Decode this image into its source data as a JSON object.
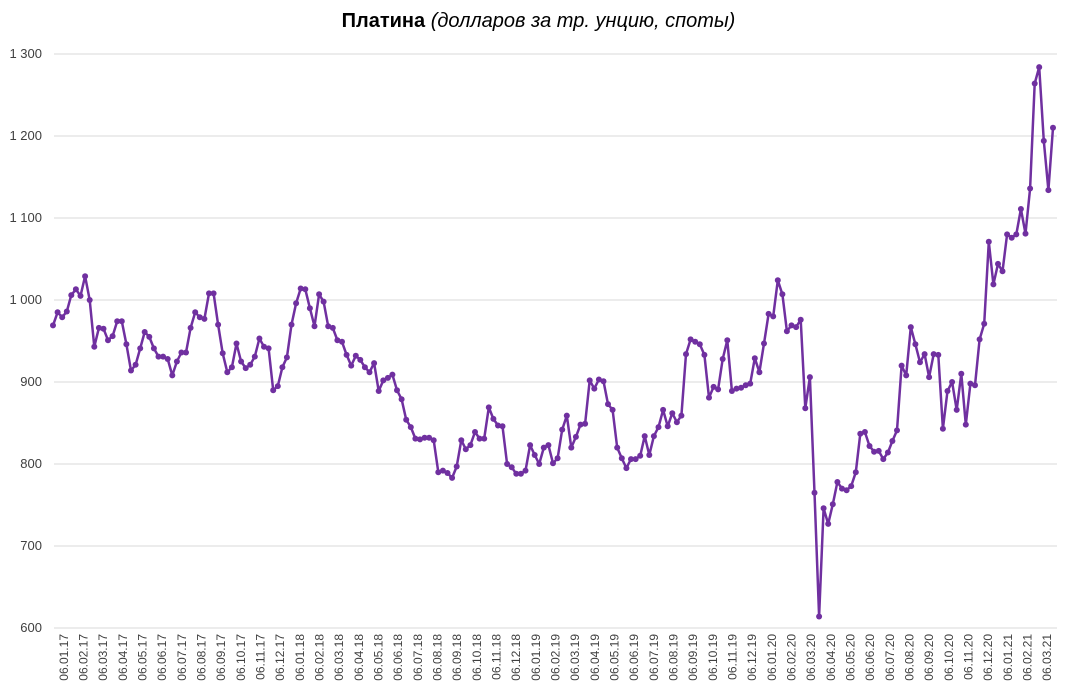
{
  "chart_data": {
    "type": "line",
    "title": "Платина",
    "subtitle": "(долларов за тр. унцию, споты)",
    "xlabel": "",
    "ylabel": "",
    "ylim": [
      600,
      1300
    ],
    "yticks": [
      600,
      700,
      800,
      900,
      1000,
      1100,
      1200,
      1300
    ],
    "ytick_labels": [
      "600",
      "700",
      "800",
      "900",
      "1 000",
      "1 100",
      "1 200",
      "1 300"
    ],
    "xtick_labels": [
      "06.01.17",
      "06.02.17",
      "06.03.17",
      "06.04.17",
      "06.05.17",
      "06.06.17",
      "06.07.17",
      "06.08.17",
      "06.09.17",
      "06.10.17",
      "06.11.17",
      "06.12.17",
      "06.01.18",
      "06.02.18",
      "06.03.18",
      "06.04.18",
      "06.05.18",
      "06.06.18",
      "06.07.18",
      "06.08.18",
      "06.09.18",
      "06.10.18",
      "06.11.18",
      "06.12.18",
      "06.01.19",
      "06.02.19",
      "06.03.19",
      "06.04.19",
      "06.05.19",
      "06.06.19",
      "06.07.19",
      "06.08.19",
      "06.09.19",
      "06.10.19",
      "06.11.19",
      "06.12.19",
      "06.01.20",
      "06.02.20",
      "06.03.20",
      "06.04.20",
      "06.05.20",
      "06.06.20",
      "06.07.20",
      "06.08.20",
      "06.09.20",
      "06.10.20",
      "06.11.20",
      "06.12.20",
      "06.01.21",
      "06.02.21",
      "06.03.21"
    ],
    "grid": true,
    "legend": "none",
    "series": [
      {
        "color": "#7030A0",
        "values": [
          969,
          985,
          979,
          986,
          1006,
          1013,
          1005,
          1029,
          1000,
          943,
          966,
          965,
          951,
          956,
          974,
          974,
          946,
          914,
          921,
          941,
          961,
          955,
          941,
          931,
          931,
          928,
          908,
          925,
          936,
          936,
          966,
          985,
          979,
          977,
          1008,
          1008,
          970,
          935,
          912,
          918,
          947,
          925,
          917,
          921,
          931,
          953,
          943,
          941,
          890,
          895,
          918,
          930,
          970,
          996,
          1014,
          1013,
          990,
          968,
          1007,
          998,
          968,
          966,
          951,
          949,
          933,
          920,
          932,
          927,
          918,
          912,
          923,
          889,
          902,
          905,
          909,
          890,
          879,
          854,
          845,
          831,
          830,
          832,
          832,
          829,
          790,
          792,
          789,
          783,
          797,
          829,
          818,
          823,
          839,
          831,
          831,
          869,
          855,
          847,
          846,
          800,
          796,
          788,
          788,
          792,
          823,
          811,
          800,
          820,
          823,
          801,
          807,
          842,
          859,
          820,
          833,
          848,
          849,
          902,
          892,
          903,
          901,
          873,
          866,
          820,
          807,
          795,
          806,
          806,
          810,
          834,
          811,
          834,
          845,
          866,
          846,
          862,
          851,
          859,
          934,
          952,
          949,
          946,
          933,
          881,
          894,
          891,
          928,
          951,
          889,
          892,
          893,
          896,
          898,
          929,
          912,
          947,
          983,
          980,
          1024,
          1007,
          962,
          969,
          967,
          976,
          868,
          906,
          765,
          614,
          746,
          727,
          751,
          778,
          770,
          768,
          773,
          790,
          837,
          839,
          822,
          815,
          816,
          806,
          814,
          828,
          841,
          920,
          908,
          967,
          946,
          924,
          934,
          906,
          934,
          933,
          843,
          889,
          900,
          866,
          910,
          848,
          898,
          896,
          952,
          971,
          1071,
          1019,
          1044,
          1035,
          1080,
          1076,
          1080,
          1111,
          1081,
          1136,
          1264,
          1284,
          1194,
          1134,
          1210
        ]
      }
    ]
  }
}
